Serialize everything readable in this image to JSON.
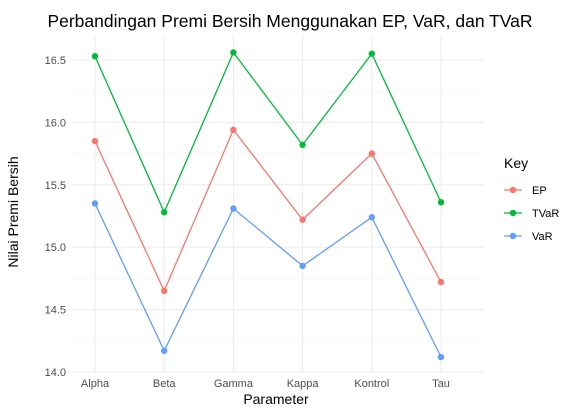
{
  "chart_data": {
    "type": "line",
    "title": "Perbandingan Premi Bersih Menggunakan EP, VaR, dan TVaR",
    "xlabel": "Parameter",
    "ylabel": "Nilai Premi Bersih",
    "categories": [
      "Alpha",
      "Beta",
      "Gamma",
      "Kappa",
      "Kontrol",
      "Tau"
    ],
    "ylim": [
      14.0,
      16.7
    ],
    "yticks": [
      "14.0",
      "14.5",
      "15.0",
      "15.5",
      "16.0",
      "16.5"
    ],
    "grid": true,
    "legend": {
      "title": "Key",
      "position": "right"
    },
    "series": [
      {
        "name": "EP",
        "color": "#F8766D",
        "values": [
          15.85,
          14.65,
          15.94,
          15.22,
          15.75,
          14.72
        ]
      },
      {
        "name": "TVaR",
        "color": "#00BA38",
        "values": [
          16.53,
          15.28,
          16.56,
          15.82,
          16.55,
          15.36
        ]
      },
      {
        "name": "VaR",
        "color": "#619CFF",
        "values": [
          15.35,
          14.17,
          15.31,
          14.85,
          15.24,
          14.12
        ]
      }
    ]
  }
}
